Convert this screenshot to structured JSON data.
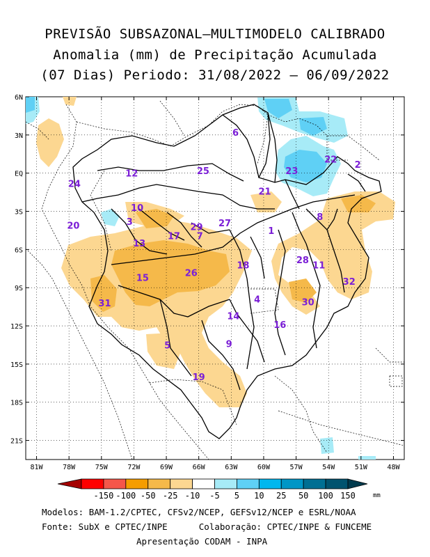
{
  "title": {
    "line1": "PREVISÃO SUBSAZONAL–MULTIMODELO CALIBRADO",
    "line2": "Anomalia (mm) de Precipitação Acumulada",
    "line3": "(07 Dias) Periodo: 31/08/2022 – 06/09/2022"
  },
  "axes": {
    "lat_labels": [
      "6N",
      "3N",
      "EQ",
      "3S",
      "6S",
      "9S",
      "12S",
      "15S",
      "18S",
      "21S"
    ],
    "lon_labels": [
      "81W",
      "78W",
      "75W",
      "72W",
      "69W",
      "66W",
      "63W",
      "60W",
      "57W",
      "54W",
      "51W",
      "48W"
    ]
  },
  "basins": [
    {
      "id": "1",
      "lon": -59.3,
      "lat": -4.5
    },
    {
      "id": "2",
      "lon": -51.3,
      "lat": 0.7
    },
    {
      "id": "3",
      "lon": -72.4,
      "lat": -3.8
    },
    {
      "id": "4",
      "lon": -60.6,
      "lat": -9.9
    },
    {
      "id": "5",
      "lon": -68.9,
      "lat": -13.5
    },
    {
      "id": "6",
      "lon": -62.6,
      "lat": 3.2
    },
    {
      "id": "7",
      "lon": -65.9,
      "lat": -4.9
    },
    {
      "id": "8",
      "lon": -54.8,
      "lat": -3.4
    },
    {
      "id": "9",
      "lon": -63.2,
      "lat": -13.4
    },
    {
      "id": "10",
      "lon": -71.7,
      "lat": -2.7
    },
    {
      "id": "11",
      "lon": -54.9,
      "lat": -7.2
    },
    {
      "id": "12",
      "lon": -72.2,
      "lat": 0.0
    },
    {
      "id": "13",
      "lon": -71.5,
      "lat": -5.5
    },
    {
      "id": "14",
      "lon": -62.8,
      "lat": -11.2
    },
    {
      "id": "15",
      "lon": -71.2,
      "lat": -8.2
    },
    {
      "id": "16",
      "lon": -58.5,
      "lat": -11.9
    },
    {
      "id": "17",
      "lon": -68.3,
      "lat": -4.9
    },
    {
      "id": "18",
      "lon": -61.9,
      "lat": -7.2
    },
    {
      "id": "19",
      "lon": -66.0,
      "lat": -16.0
    },
    {
      "id": "20",
      "lon": -77.6,
      "lat": -4.1
    },
    {
      "id": "21",
      "lon": -59.9,
      "lat": -1.4
    },
    {
      "id": "22",
      "lon": -53.8,
      "lat": 1.1
    },
    {
      "id": "23",
      "lon": -57.4,
      "lat": 0.2
    },
    {
      "id": "24",
      "lon": -77.5,
      "lat": -0.8
    },
    {
      "id": "25",
      "lon": -65.6,
      "lat": 0.2
    },
    {
      "id": "26",
      "lon": -66.7,
      "lat": -7.8
    },
    {
      "id": "27",
      "lon": -63.6,
      "lat": -3.9
    },
    {
      "id": "28",
      "lon": -56.4,
      "lat": -6.8
    },
    {
      "id": "29",
      "lon": -66.2,
      "lat": -4.2
    },
    {
      "id": "30",
      "lon": -55.9,
      "lat": -10.1
    },
    {
      "id": "31",
      "lon": -74.7,
      "lat": -10.2
    },
    {
      "id": "32",
      "lon": -52.1,
      "lat": -8.5
    }
  ],
  "legend": {
    "labels": [
      "-150",
      "-100",
      "-50",
      "-25",
      "-10",
      "-5",
      "5",
      "10",
      "25",
      "50",
      "100",
      "150"
    ],
    "unit": "mm",
    "colors": [
      "#a50000",
      "#ff0000",
      "#f5564a",
      "#f59d00",
      "#f5b94a",
      "#fcd791",
      "#ffffff",
      "#a7ebf7",
      "#5fd0f5",
      "#00b7ee",
      "#0096c6",
      "#006f93",
      "#00536f",
      "#003a4d"
    ]
  },
  "footer": {
    "line1": "Modelos: BAM-1.2/CPTEC, CFSv2/NCEP, GEFSv12/NCEP e ESRL/NOAA",
    "line2": "Fonte: SubX e CPTEC/INPE      Colaboração: CPTEC/INPE & FUNCEME",
    "line3": "Apresentação CODAM - INPA"
  }
}
